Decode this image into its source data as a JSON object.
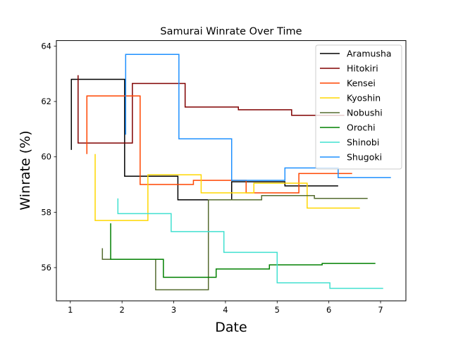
{
  "chart_data": {
    "type": "line",
    "title": "Samurai Winrate Over Time",
    "xlabel": "Date",
    "ylabel": "Winrate (%)",
    "xlim": [
      0.73,
      7.49
    ],
    "ylim": [
      54.8,
      64.2
    ],
    "xticks": [
      1,
      2,
      3,
      4,
      5,
      6,
      7
    ],
    "yticks": [
      56,
      58,
      60,
      62,
      64
    ],
    "grid": false,
    "legend_position": "top-right",
    "step": "post",
    "series": [
      {
        "name": "Aramusha",
        "color": "#000000",
        "x": [
          1.02,
          1.02,
          2.05,
          3.08,
          4.12,
          5.15,
          6.18
        ],
        "y": [
          60.25,
          62.8,
          59.3,
          58.45,
          59.1,
          58.95,
          58.95
        ]
      },
      {
        "name": "Hitokiri",
        "color": "#800000",
        "x": [
          1.15,
          1.15,
          2.2,
          3.22,
          4.25,
          5.28,
          6.3
        ],
        "y": [
          62.95,
          60.5,
          62.65,
          61.8,
          61.7,
          61.5,
          61.5
        ]
      },
      {
        "name": "Kensei",
        "color": "#ff4500",
        "x": [
          1.32,
          1.32,
          2.35,
          3.38,
          4.4,
          5.42,
          6.45
        ],
        "y": [
          60.1,
          62.2,
          59.0,
          59.15,
          58.7,
          59.4,
          59.4
        ]
      },
      {
        "name": "Kyoshin",
        "color": "#ffd700",
        "x": [
          1.48,
          1.48,
          2.5,
          3.53,
          4.55,
          5.58,
          6.6
        ],
        "y": [
          60.1,
          57.7,
          59.35,
          58.7,
          59.05,
          58.15,
          58.15
        ]
      },
      {
        "name": "Nobushi",
        "color": "#556b2f",
        "x": [
          1.62,
          1.62,
          2.65,
          3.67,
          4.7,
          5.72,
          6.75
        ],
        "y": [
          56.7,
          56.3,
          55.2,
          58.45,
          58.6,
          58.5,
          58.5
        ]
      },
      {
        "name": "Orochi",
        "color": "#008000",
        "x": [
          1.78,
          1.78,
          2.8,
          3.82,
          4.85,
          5.87,
          6.9
        ],
        "y": [
          57.6,
          56.3,
          55.65,
          55.95,
          56.1,
          56.15,
          56.15
        ]
      },
      {
        "name": "Shinobi",
        "color": "#40e0d0",
        "x": [
          1.92,
          1.92,
          2.95,
          3.97,
          5.0,
          6.02,
          7.05
        ],
        "y": [
          58.5,
          57.95,
          57.3,
          56.55,
          55.45,
          55.25,
          55.25
        ]
      },
      {
        "name": "Shugoki",
        "color": "#1e90ff",
        "x": [
          2.07,
          2.07,
          3.1,
          4.12,
          5.15,
          6.18,
          7.2
        ],
        "y": [
          60.8,
          63.7,
          60.65,
          59.15,
          59.6,
          59.25,
          59.25
        ]
      }
    ]
  }
}
